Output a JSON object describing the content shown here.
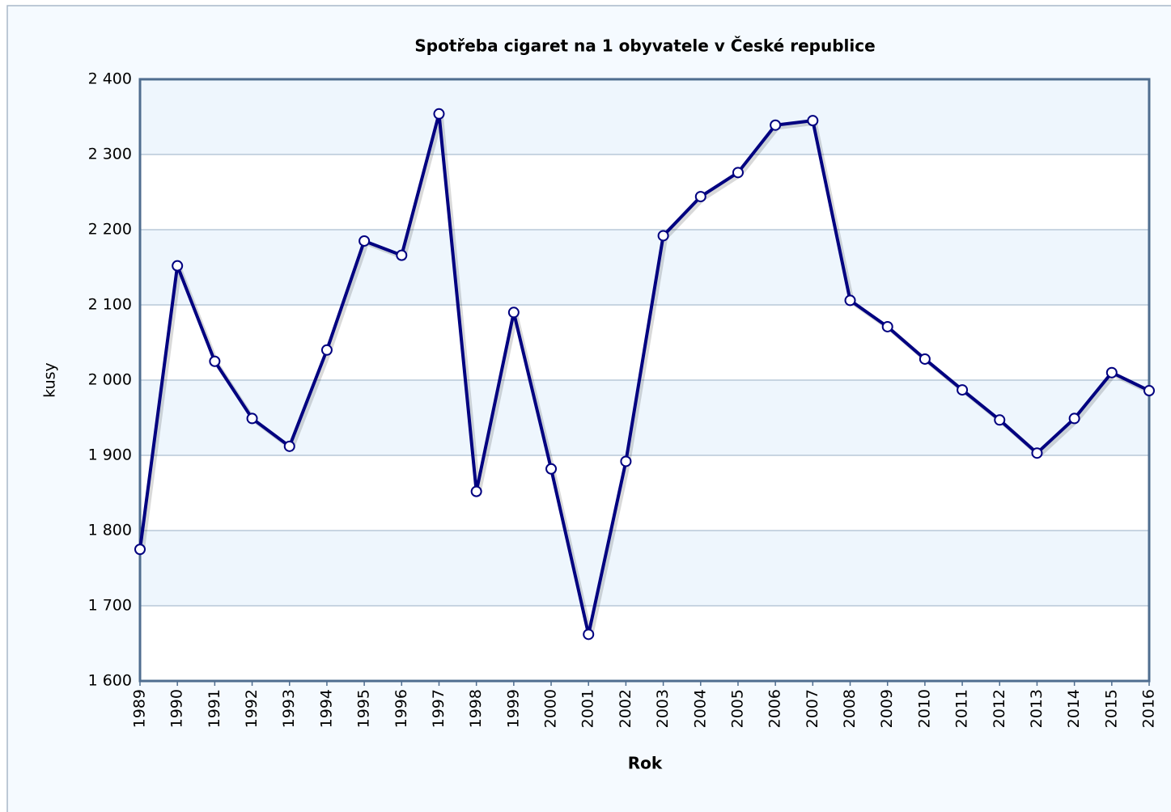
{
  "chart_data": {
    "type": "line",
    "title": "Spotřeba cigaret na 1 obyvatele v České republice",
    "x_label": "Rok",
    "y_label": "kusy",
    "categories": [
      "1989",
      "1990",
      "1991",
      "1992",
      "1993",
      "1994",
      "1995",
      "1996",
      "1997",
      "1998",
      "1999",
      "2000",
      "2001",
      "2002",
      "2003",
      "2004",
      "2005",
      "2006",
      "2007",
      "2008",
      "2009",
      "2010",
      "2011",
      "2012",
      "2013",
      "2014",
      "2015",
      "2016"
    ],
    "series": [
      {
        "name": "kusy",
        "color": "#000080",
        "values": [
          1775,
          2152,
          2025,
          1949,
          1912,
          2040,
          2185,
          2166,
          2354,
          1852,
          2090,
          1882,
          1662,
          1892,
          2192,
          2244,
          2276,
          2339,
          2345,
          2106,
          2071,
          2028,
          1987,
          1947,
          1903,
          1949,
          2010,
          1986
        ]
      }
    ],
    "ylim": [
      1600,
      2400
    ],
    "yticks": [
      {
        "value": 1600,
        "label": "1 600"
      },
      {
        "value": 1700,
        "label": "1 700"
      },
      {
        "value": 1800,
        "label": "1 800"
      },
      {
        "value": 1900,
        "label": "1 900"
      },
      {
        "value": 2000,
        "label": "2 000"
      },
      {
        "value": 2100,
        "label": "2 100"
      },
      {
        "value": 2200,
        "label": "2 200"
      },
      {
        "value": 2300,
        "label": "2 300"
      },
      {
        "value": 2400,
        "label": "2 400"
      }
    ],
    "grid": true
  }
}
